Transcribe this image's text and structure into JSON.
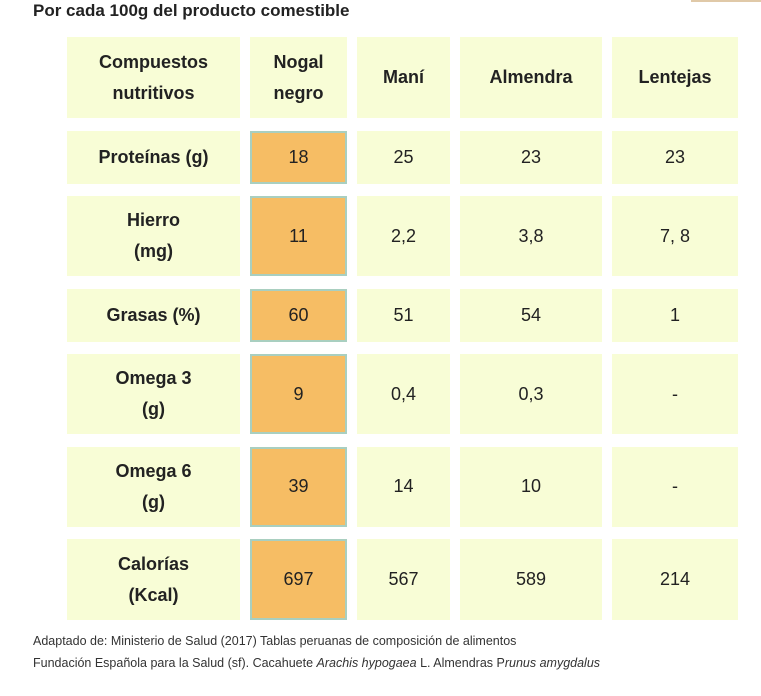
{
  "title": "Por cada 100g del producto comestible",
  "table": {
    "headers": [
      "Compuestos\nnutritivos",
      "Nogal\nnegro",
      "Maní",
      "Almendra",
      "Lentejas"
    ],
    "rows": [
      [
        "Proteínas (g)",
        "18",
        "25",
        "23",
        "23"
      ],
      [
        "Hierro\n(mg)",
        "11",
        "2,2",
        "3,8",
        "7, 8"
      ],
      [
        "Grasas (%)",
        "60",
        "51",
        "54",
        "1"
      ],
      [
        "Omega 3\n(g)",
        "9",
        "0,4",
        "0,3",
        "-"
      ],
      [
        "Omega 6\n(g)",
        "39",
        "14",
        "10",
        "-"
      ],
      [
        "Calorías\n(Kcal)",
        "697",
        "567",
        "589",
        "214"
      ]
    ]
  },
  "footer": {
    "line1": "Adaptado de: Ministerio de Salud (2017) Tablas peruanas de composición de alimentos",
    "line2_a": "Fundación Española para la Salud (sf). Cacahuete ",
    "line2_b": "Arachis hypogaea",
    "line2_c": " L.  Almendras P",
    "line2_d": "runus amygdalus"
  },
  "colors": {
    "cell": "#f8fdd6",
    "highlight": "#f6bd64"
  }
}
